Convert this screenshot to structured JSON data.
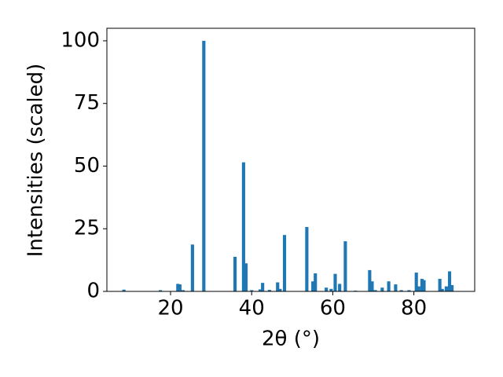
{
  "chart_data": {
    "type": "bar",
    "x_label": "2θ (°)",
    "y_label": "Intensities (scaled)",
    "x": [
      8.5,
      17.5,
      21.8,
      22.3,
      23.1,
      25.4,
      28.2,
      35.9,
      38.0,
      38.6,
      40.0,
      42.1,
      42.7,
      44.4,
      46.4,
      47.0,
      48.1,
      53.6,
      55.1,
      55.7,
      58.4,
      59.6,
      60.6,
      61.7,
      63.1,
      65.6,
      69.1,
      69.7,
      70.5,
      72.2,
      73.8,
      75.5,
      76.9,
      78.8,
      80.6,
      81.2,
      82.0,
      82.5,
      86.4,
      87.0,
      88.0,
      88.8,
      89.4
    ],
    "values": [
      0.7,
      0.5,
      3,
      2.8,
      0.5,
      18.7,
      100,
      13.8,
      51.5,
      11.2,
      0.5,
      0.8,
      3.4,
      0.6,
      3.6,
      1,
      22.5,
      25.7,
      4,
      7.2,
      1.5,
      1,
      7,
      3,
      20,
      0.3,
      8.5,
      4,
      0.5,
      1.5,
      4,
      2.8,
      0.5,
      0.5,
      7.5,
      2,
      5,
      4.5,
      5,
      1,
      2,
      8,
      2.5
    ],
    "color": "#1f77b4",
    "xlim": [
      4.3,
      95
    ],
    "ylim": [
      0,
      105
    ],
    "xticks": [
      20,
      40,
      60,
      80
    ],
    "yticks": [
      0,
      25,
      50,
      75,
      100
    ]
  }
}
